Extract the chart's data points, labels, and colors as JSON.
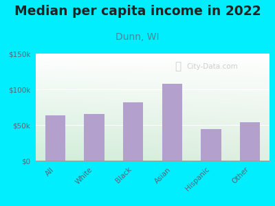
{
  "title": "Median per capita income in 2022",
  "subtitle": "Dunn, WI",
  "categories": [
    "All",
    "White",
    "Black",
    "Asian",
    "Hispanic",
    "Other"
  ],
  "values": [
    63000,
    65000,
    82000,
    108000,
    44000,
    54000
  ],
  "bar_color": "#b3a0cc",
  "title_fontsize": 13.5,
  "subtitle_fontsize": 10,
  "subtitle_color": "#448899",
  "title_color": "#222222",
  "bg_outer": "#00eeff",
  "ylim": [
    0,
    150000
  ],
  "yticks": [
    0,
    50000,
    100000,
    150000
  ],
  "ytick_labels": [
    "$0",
    "$50k",
    "$100k",
    "$150k"
  ],
  "watermark": "City-Data.com",
  "tick_color": "#556677"
}
